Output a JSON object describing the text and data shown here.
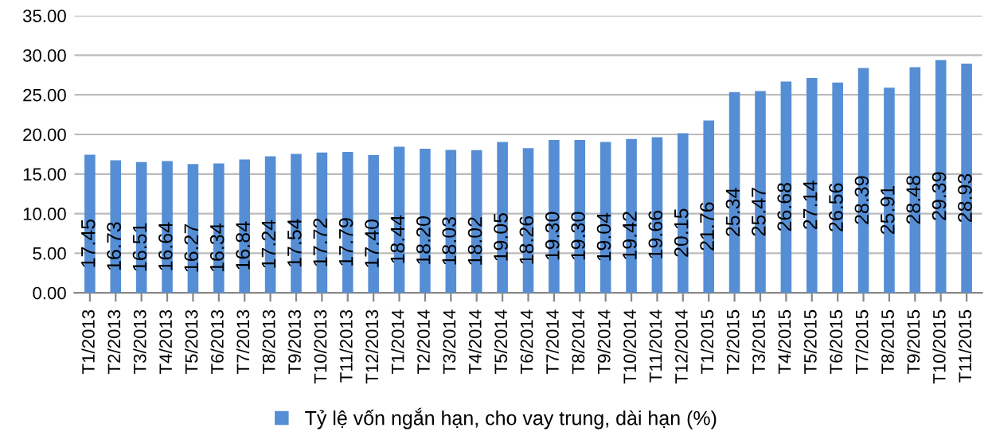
{
  "chart_data": {
    "type": "bar",
    "categories": [
      "T1/2013",
      "T2/2013",
      "T3/2013",
      "T4/2013",
      "T5/2013",
      "T6/2013",
      "T7/2013",
      "T8/2013",
      "T9/2013",
      "T10/2013",
      "T11/2013",
      "T12/2013",
      "T1/2014",
      "T2/2014",
      "T3/2014",
      "T4/2014",
      "T5/2014",
      "T6/2014",
      "T7/2014",
      "T8/2014",
      "T9/2014",
      "T10/2014",
      "T11/2014",
      "T12/2014",
      "T1/2015",
      "T2/2015",
      "T3/2015",
      "T4/2015",
      "T5/2015",
      "T6/2015",
      "T7/2015",
      "T8/2015",
      "T9/2015",
      "T10/2015",
      "T11/2015"
    ],
    "series": [
      {
        "name": "Tỷ lệ vốn ngắn hạn, cho vay trung, dài hạn (%)",
        "color": "#558ed5",
        "values": [
          17.45,
          16.73,
          16.51,
          16.64,
          16.27,
          16.34,
          16.84,
          17.24,
          17.54,
          17.72,
          17.79,
          17.4,
          18.44,
          18.2,
          18.03,
          18.02,
          19.05,
          18.26,
          19.3,
          19.3,
          19.04,
          19.42,
          19.66,
          20.15,
          21.76,
          25.34,
          25.47,
          26.68,
          27.14,
          26.56,
          28.39,
          25.91,
          28.48,
          29.39,
          28.93
        ],
        "value_labels": [
          "17.45",
          "16.73",
          "16.51",
          "16.64",
          "16.27",
          "16.34",
          "16.84",
          "17.24",
          "17.54",
          "17.72",
          "17.79",
          "17.40",
          "18.44",
          "18.20",
          "18.03",
          "18.02",
          "19.05",
          "18.26",
          "19.30",
          "19.30",
          "19.04",
          "19.42",
          "19.66",
          "20.15",
          "21.76",
          "25.34",
          "25.47",
          "26.68",
          "27.14",
          "26.56",
          "28.39",
          "25.91",
          "28.48",
          "29.39",
          "28.93"
        ]
      }
    ],
    "ylim": [
      0,
      35
    ],
    "yticks": [
      {
        "value": 0,
        "label": "0.00"
      },
      {
        "value": 5,
        "label": "5.00"
      },
      {
        "value": 10,
        "label": "10.00"
      },
      {
        "value": 15,
        "label": "15.00"
      },
      {
        "value": 20,
        "label": "20.00"
      },
      {
        "value": 25,
        "label": "25.00"
      },
      {
        "value": 30,
        "label": "30.00"
      },
      {
        "value": 35,
        "label": "35.00"
      }
    ],
    "grid": "y",
    "legend": "bottom"
  }
}
